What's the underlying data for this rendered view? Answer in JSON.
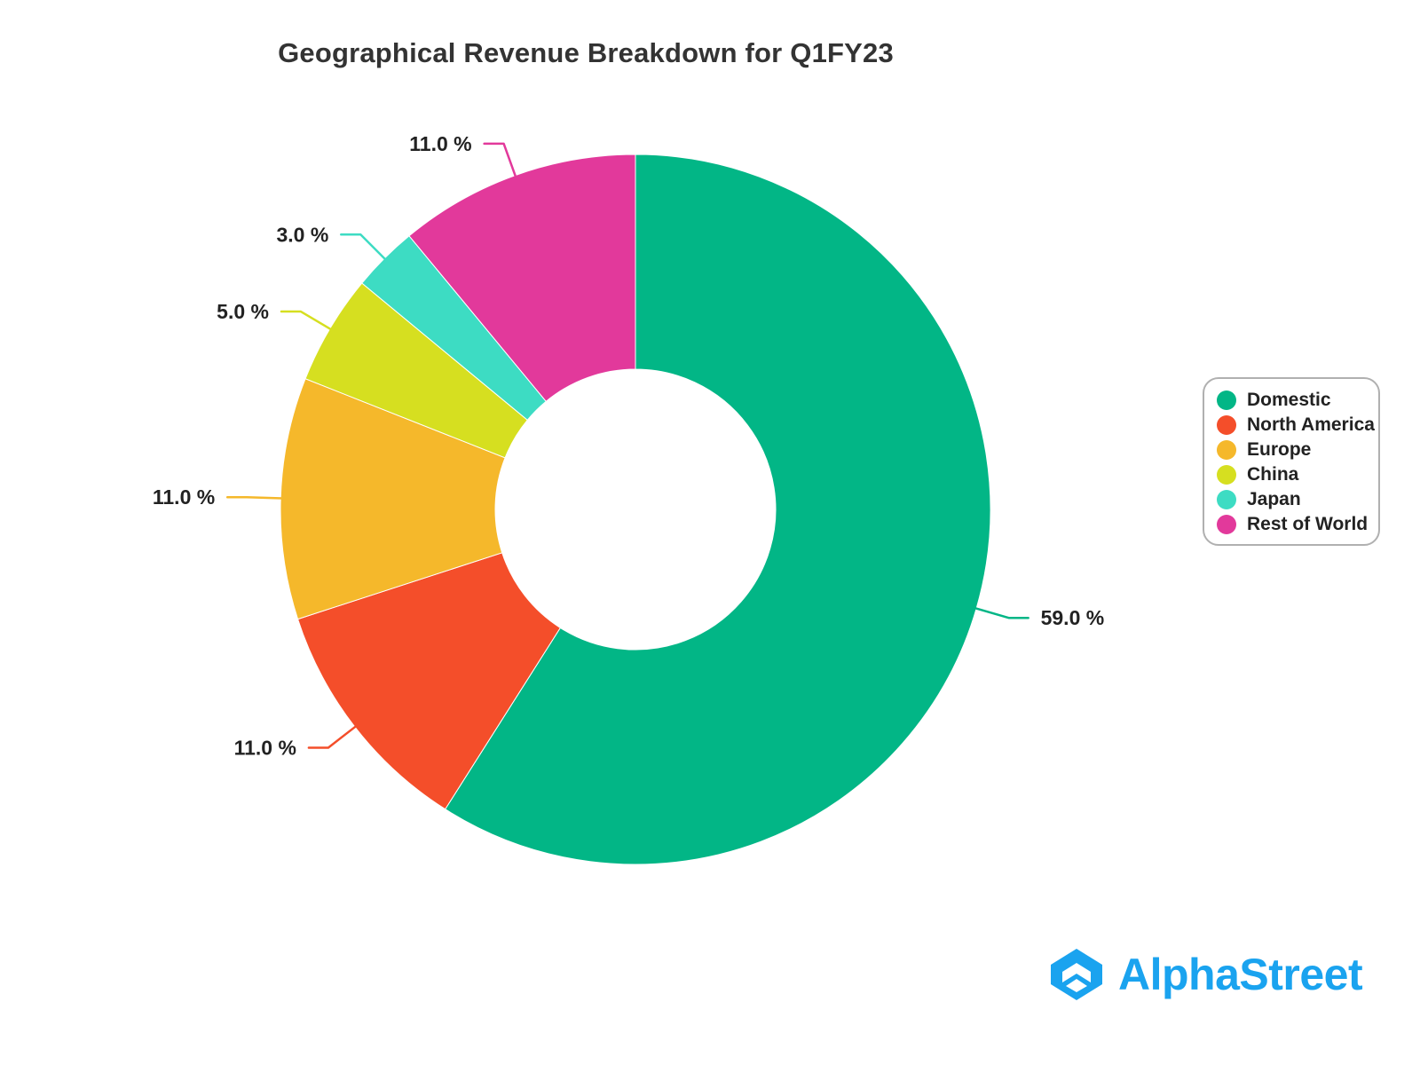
{
  "chart_data": {
    "type": "pie",
    "variant": "donut",
    "title": "Geographical Revenue Breakdown for Q1FY23",
    "categories": [
      "Domestic",
      "North America",
      "Europe",
      "China",
      "Japan",
      "Rest of World"
    ],
    "values": [
      59.0,
      11.0,
      11.0,
      5.0,
      3.0,
      11.0
    ],
    "labels": [
      "59.0 %",
      "11.0 %",
      "11.0 %",
      "5.0 %",
      "3.0 %",
      "11.0 %"
    ],
    "colors": [
      "#02b686",
      "#f44e2a",
      "#f5b82b",
      "#d6df20",
      "#3ddcc3",
      "#e2399b"
    ],
    "legend_position": "right"
  },
  "brand": {
    "name": "AlphaStreet",
    "logo_icon": "alphastreet-logo-icon",
    "color": "#1aa3ef"
  }
}
